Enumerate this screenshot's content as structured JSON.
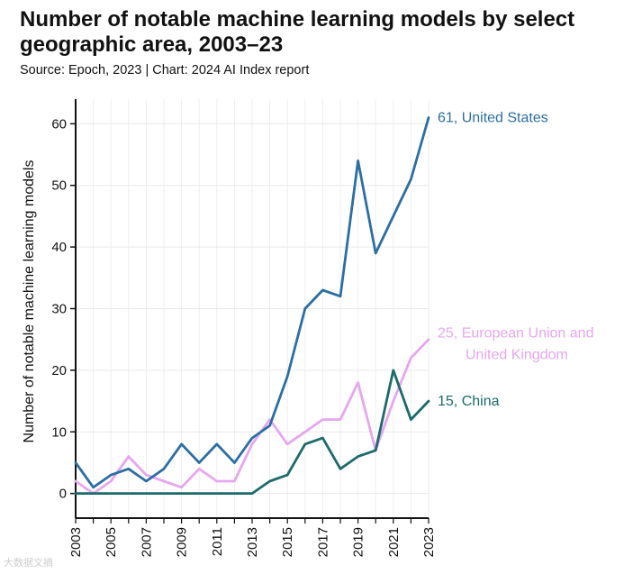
{
  "header": {
    "title": "Number of notable machine learning models by select geographic area, 2003–23",
    "source": "Source: Epoch, 2023 | Chart: 2024 AI Index report"
  },
  "watermark": "大数据文摘",
  "chart_data": {
    "type": "line",
    "title": "Number of notable machine learning models by select geographic area, 2003–23",
    "xlabel": "",
    "ylabel": "Number of notable machine learning models",
    "x": [
      2003,
      2004,
      2005,
      2006,
      2007,
      2008,
      2009,
      2010,
      2011,
      2012,
      2013,
      2014,
      2015,
      2016,
      2017,
      2018,
      2019,
      2020,
      2021,
      2022,
      2023
    ],
    "xticks": [
      "2003",
      "2005",
      "2007",
      "2009",
      "2011",
      "2013",
      "2015",
      "2017",
      "2019",
      "2021",
      "2023"
    ],
    "yticks": [
      0,
      10,
      20,
      30,
      40,
      50,
      60
    ],
    "ylim": [
      -4,
      64
    ],
    "grid": true,
    "series": [
      {
        "name": "United States",
        "label": "61, United States",
        "color": "#2c6ea3",
        "values": [
          5,
          1,
          3,
          4,
          2,
          4,
          8,
          5,
          8,
          5,
          9,
          11,
          19,
          30,
          33,
          32,
          54,
          39,
          45,
          51,
          61
        ]
      },
      {
        "name": "European Union and United Kingdom",
        "label": "25, European Union and",
        "label_line2": "United Kingdom",
        "color": "#e6a6f0",
        "values": [
          2,
          0,
          2,
          6,
          3,
          2,
          1,
          4,
          2,
          2,
          8,
          12,
          8,
          10,
          12,
          12,
          18,
          7,
          15,
          22,
          25
        ]
      },
      {
        "name": "China",
        "label": "15, China",
        "color": "#1c6a6a",
        "values": [
          0,
          0,
          0,
          0,
          0,
          0,
          0,
          0,
          0,
          0,
          0,
          2,
          3,
          8,
          9,
          4,
          6,
          7,
          20,
          12,
          15
        ]
      }
    ]
  }
}
